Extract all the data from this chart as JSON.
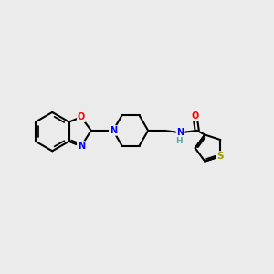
{
  "background_color": "#ebebeb",
  "bond_color": "#000000",
  "atom_colors": {
    "N": "#0000ff",
    "O": "#ff0000",
    "S": "#999900",
    "C": "#000000",
    "H": "#5fa8a8"
  },
  "figsize": [
    3.0,
    3.0
  ],
  "dpi": 100
}
